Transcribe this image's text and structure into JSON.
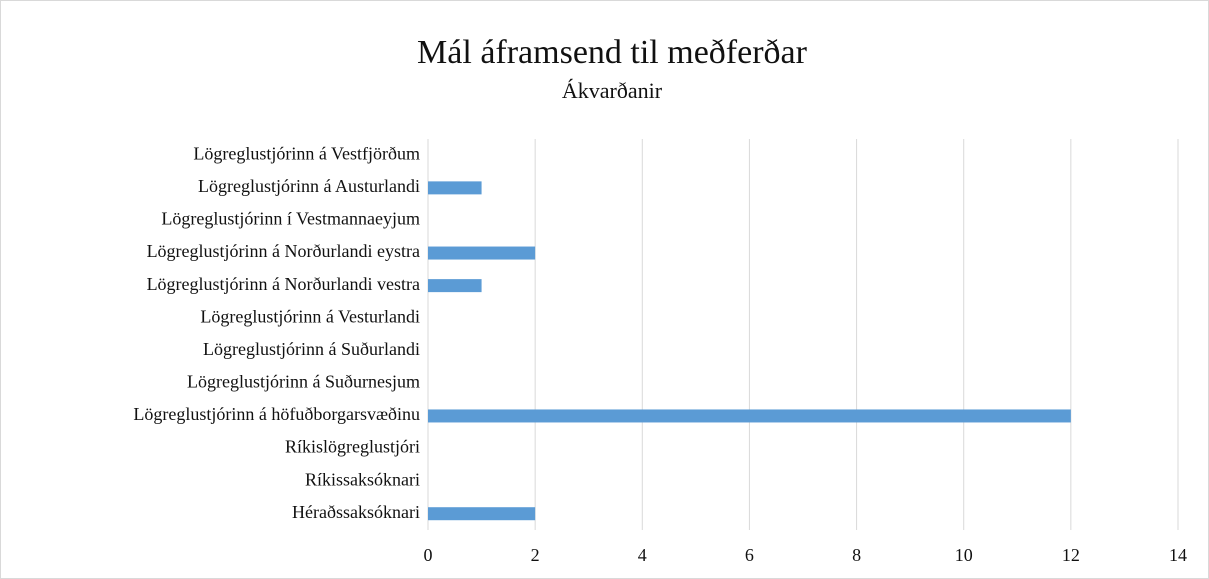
{
  "chart_data": {
    "type": "barh",
    "title": "Mál áframsend til meðferðar",
    "subtitle": "Ákvarðanir",
    "categories": [
      "Lögreglustjórinn á Vestfjörðum",
      "Lögreglustjórinn á Austurlandi",
      "Lögreglustjórinn í Vestmannaeyjum",
      "Lögreglustjórinn á Norðurlandi eystra",
      "Lögreglustjórinn á Norðurlandi vestra",
      "Lögreglustjórinn á Vesturlandi",
      "Lögreglustjórinn á Suðurlandi",
      "Lögreglustjórinn á Suðurnesjum",
      "Lögreglustjórinn á höfuðborgarsvæðinu",
      "Ríkislögreglustjóri",
      "Ríkissaksóknari",
      "Héraðssaksóknari"
    ],
    "values": [
      0,
      1,
      0,
      2,
      1,
      0,
      0,
      0,
      12,
      0,
      0,
      2
    ],
    "color": "#5b9bd5",
    "xlim": [
      0,
      14
    ],
    "xticks": [
      0,
      2,
      4,
      6,
      8,
      10,
      12,
      14
    ],
    "grid": true
  }
}
